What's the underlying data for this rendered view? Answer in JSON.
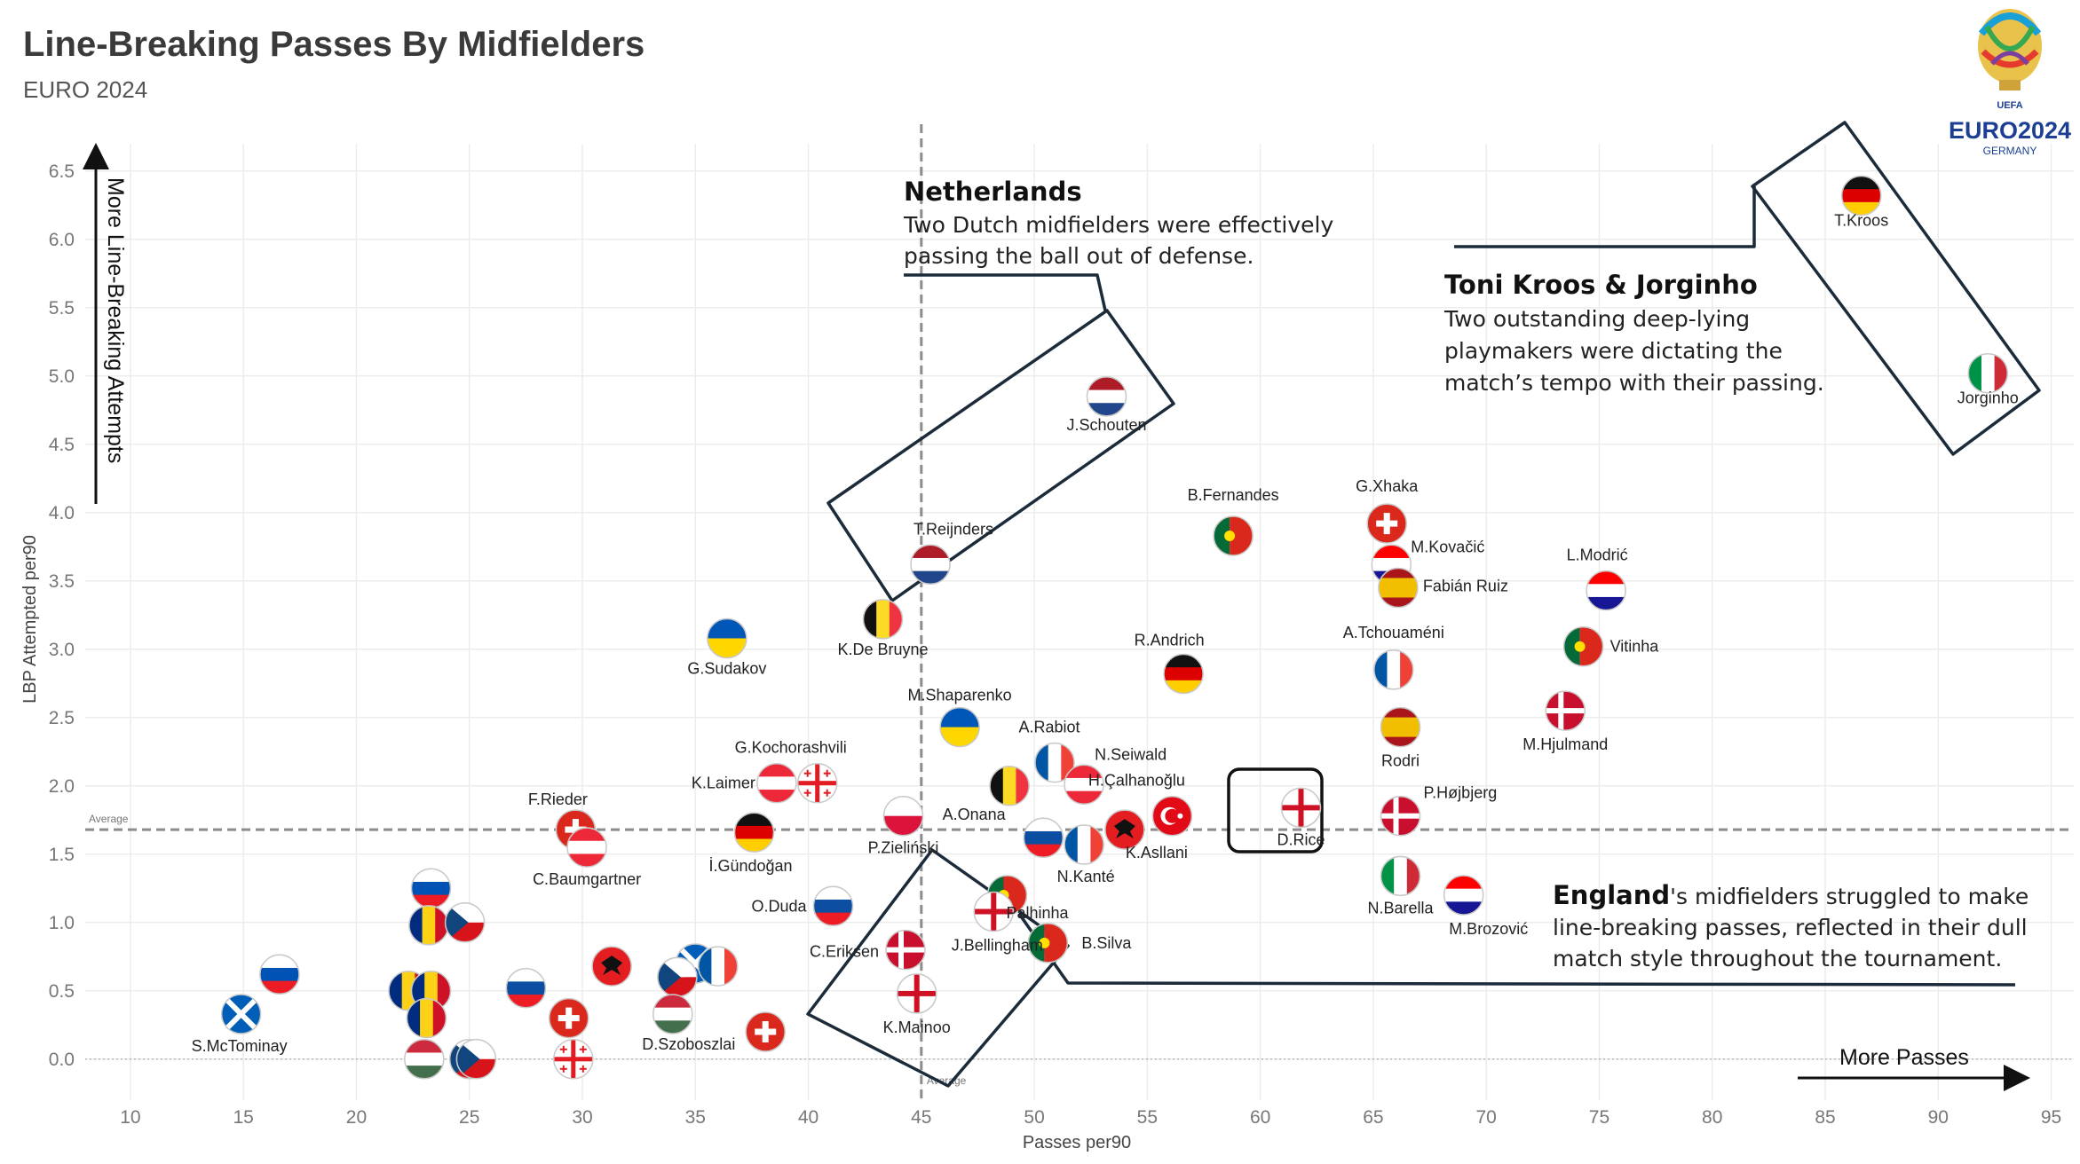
{
  "title": "Line-Breaking Passes By Midfielders",
  "subtitle": "EURO 2024",
  "logo": {
    "top": "UEFA",
    "main": "EURO2024",
    "bottom": "GERMANY"
  },
  "chart_data": {
    "type": "scatter",
    "title": "Line-Breaking Passes By Midfielders",
    "subtitle": "EURO 2024",
    "xlabel": "Passes per90",
    "ylabel": "LBP Attempted per90",
    "xlim": [
      8,
      96
    ],
    "ylim": [
      -0.3,
      6.7
    ],
    "xticks": [
      10,
      15,
      20,
      25,
      30,
      35,
      40,
      45,
      50,
      55,
      60,
      65,
      70,
      75,
      80,
      85,
      90,
      95
    ],
    "yticks": [
      "0.0",
      "0.5",
      "1.0",
      "1.5",
      "2.0",
      "2.5",
      "3.0",
      "3.5",
      "4.0",
      "4.5",
      "5.0",
      "5.5",
      "6.0",
      "6.5"
    ],
    "grid": true,
    "average_x": 45,
    "average_y": 1.68,
    "average_label": "Average",
    "y_arrow_label": "More Line-Breaking Attempts",
    "x_arrow_label": "More Passes",
    "points": [
      {
        "name": "T.Kroos",
        "x": 86.6,
        "y": 6.32,
        "flag": "germany"
      },
      {
        "name": "Jorginho",
        "x": 92.2,
        "y": 5.02,
        "flag": "italy"
      },
      {
        "name": "J.Schouten",
        "x": 53.2,
        "y": 4.85,
        "flag": "netherlands"
      },
      {
        "name": "T.Reijnders",
        "x": 45.4,
        "y": 3.62,
        "flag": "netherlands"
      },
      {
        "name": "B.Fernandes",
        "x": 58.8,
        "y": 3.83,
        "flag": "portugal"
      },
      {
        "name": "G.Xhaka",
        "x": 65.6,
        "y": 3.92,
        "flag": "switzerland"
      },
      {
        "name": "M.Kovačić",
        "x": 65.8,
        "y": 3.62,
        "flag": "croatia"
      },
      {
        "name": "Fabián Ruiz",
        "x": 66.1,
        "y": 3.45,
        "flag": "spain"
      },
      {
        "name": "L.Modrić",
        "x": 75.3,
        "y": 3.43,
        "flag": "croatia"
      },
      {
        "name": "K.De Bruyne",
        "x": 43.3,
        "y": 3.22,
        "flag": "belgium"
      },
      {
        "name": "G.Sudakov",
        "x": 36.4,
        "y": 3.08,
        "flag": "ukraine"
      },
      {
        "name": "Vitinha",
        "x": 74.3,
        "y": 3.02,
        "flag": "portugal"
      },
      {
        "name": "R.Andrich",
        "x": 56.6,
        "y": 2.82,
        "flag": "germany"
      },
      {
        "name": "A.Tchouaméni",
        "x": 65.9,
        "y": 2.85,
        "flag": "france"
      },
      {
        "name": "M.Hjulmand",
        "x": 73.5,
        "y": 2.55,
        "flag": "denmark"
      },
      {
        "name": "Rodri",
        "x": 66.2,
        "y": 2.43,
        "flag": "spain"
      },
      {
        "name": "M.Shaparenko",
        "x": 46.7,
        "y": 2.43,
        "flag": "ukraine"
      },
      {
        "name": "A.Rabiot",
        "x": 50.9,
        "y": 2.17,
        "flag": "france"
      },
      {
        "name": "N.Seiwald",
        "x": 52.2,
        "y": 2.01,
        "flag": "austria"
      },
      {
        "name": "A.Onana",
        "x": 48.9,
        "y": 2.0,
        "flag": "belgium"
      },
      {
        "name": "K.Laimer",
        "x": 38.6,
        "y": 2.02,
        "flag": "austria"
      },
      {
        "name": "G.Kochorashvili",
        "x": 40.4,
        "y": 2.02,
        "flag": "georgia"
      },
      {
        "name": "H.Çalhanoğlu",
        "x": 56.1,
        "y": 1.78,
        "flag": "turkey"
      },
      {
        "name": "P.Højbjerg",
        "x": 66.2,
        "y": 1.78,
        "flag": "denmark"
      },
      {
        "name": "D.Rice",
        "x": 61.8,
        "y": 1.84,
        "flag": "england"
      },
      {
        "name": "P.Zieliński",
        "x": 44.2,
        "y": 1.78,
        "flag": "poland"
      },
      {
        "name": "F.Rieder",
        "x": 29.7,
        "y": 1.68,
        "flag": "switzerland"
      },
      {
        "name": "C.Baumgartner",
        "x": 30.2,
        "y": 1.55,
        "flag": "austria"
      },
      {
        "name": "İ.Gündoğan",
        "x": 37.6,
        "y": 1.66,
        "flag": "germany"
      },
      {
        "name": "K.Asllani",
        "x": 54.0,
        "y": 1.68,
        "flag": "albania"
      },
      {
        "name": "N.Kanté",
        "x": 52.2,
        "y": 1.57,
        "flag": "france"
      },
      {
        "name": "",
        "x": 50.4,
        "y": 1.62,
        "flag": "slovakia"
      },
      {
        "name": "N.Barella",
        "x": 66.2,
        "y": 1.34,
        "flag": "italy"
      },
      {
        "name": "M.Brozović",
        "x": 69.0,
        "y": 1.2,
        "flag": "croatia"
      },
      {
        "name": "O.Duda",
        "x": 41.1,
        "y": 1.12,
        "flag": "slovakia"
      },
      {
        "name": "Palhinha",
        "x": 48.8,
        "y": 1.2,
        "flag": "portugal"
      },
      {
        "name": "J.Bellingham",
        "x": 48.2,
        "y": 1.08,
        "flag": "england"
      },
      {
        "name": "B.Silva",
        "x": 50.6,
        "y": 0.85,
        "flag": "portugal"
      },
      {
        "name": "C.Eriksen",
        "x": 44.3,
        "y": 0.8,
        "flag": "denmark"
      },
      {
        "name": "K.Mainoo",
        "x": 44.8,
        "y": 0.48,
        "flag": "england"
      },
      {
        "name": "",
        "x": 23.3,
        "y": 1.25,
        "flag": "slovenia"
      },
      {
        "name": "",
        "x": 23.2,
        "y": 0.98,
        "flag": "romania"
      },
      {
        "name": "",
        "x": 24.8,
        "y": 1.0,
        "flag": "czechia"
      },
      {
        "name": "",
        "x": 16.6,
        "y": 0.62,
        "flag": "slovenia"
      },
      {
        "name": "S.McTominay",
        "x": 14.9,
        "y": 0.33,
        "flag": "scotland"
      },
      {
        "name": "",
        "x": 22.3,
        "y": 0.5,
        "flag": "romania"
      },
      {
        "name": "",
        "x": 23.3,
        "y": 0.5,
        "flag": "romania"
      },
      {
        "name": "",
        "x": 23.1,
        "y": 0.3,
        "flag": "romania"
      },
      {
        "name": "",
        "x": 23.0,
        "y": 0.0,
        "flag": "hungary"
      },
      {
        "name": "",
        "x": 25.0,
        "y": 0.0,
        "flag": "czechia"
      },
      {
        "name": "",
        "x": 25.3,
        "y": 0.0,
        "flag": "czechia"
      },
      {
        "name": "",
        "x": 27.5,
        "y": 0.52,
        "flag": "slovakia"
      },
      {
        "name": "",
        "x": 29.4,
        "y": 0.3,
        "flag": "switzerland"
      },
      {
        "name": "",
        "x": 29.6,
        "y": 0.0,
        "flag": "georgia"
      },
      {
        "name": "",
        "x": 31.3,
        "y": 0.68,
        "flag": "albania"
      },
      {
        "name": "",
        "x": 35.0,
        "y": 0.7,
        "flag": "scotland"
      },
      {
        "name": "",
        "x": 34.2,
        "y": 0.6,
        "flag": "czechia"
      },
      {
        "name": "",
        "x": 36.0,
        "y": 0.68,
        "flag": "france"
      },
      {
        "name": "D.Szoboszlai",
        "x": 34.0,
        "y": 0.33,
        "flag": "hungary"
      },
      {
        "name": "",
        "x": 38.1,
        "y": 0.2,
        "flag": "switzerland"
      }
    ]
  },
  "annotations": {
    "netherlands": {
      "title": "Netherlands",
      "lines": [
        "Two Dutch midfielders were effectively",
        "passing the ball out of defense."
      ]
    },
    "kroos_jorginho": {
      "title": "Toni Kroos & Jorginho",
      "lines": [
        "Two outstanding deep-lying",
        "playmakers were dictating the",
        "match’s tempo with their passing."
      ]
    },
    "england": {
      "title": "England",
      "title_rest": "'s midfielders struggled to make",
      "lines": [
        "line-breaking passes, reflected in their dull",
        "match style throughout the tournament."
      ]
    }
  },
  "colors": {
    "grid": "#ececec",
    "average_line": "#8c8c8c",
    "annotation_line": "#1c2b3a",
    "text": "#333333"
  }
}
